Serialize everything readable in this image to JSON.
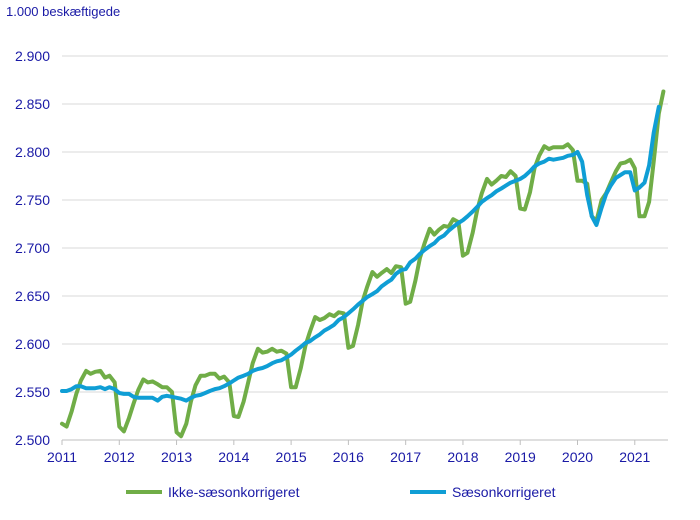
{
  "chart_data": {
    "type": "line",
    "title": "",
    "ylabel": "1.000 beskæftigede",
    "xlabel": "",
    "ylim": [
      2500,
      2900
    ],
    "xlim": [
      2011,
      2021.58
    ],
    "yticks": [
      2500,
      2550,
      2600,
      2650,
      2700,
      2750,
      2800,
      2850,
      2900
    ],
    "yticklabels": [
      "2.500",
      "2.550",
      "2.600",
      "2.650",
      "2.700",
      "2.750",
      "2.800",
      "2.850",
      "2.900"
    ],
    "xticks": [
      2011,
      2012,
      2013,
      2014,
      2015,
      2016,
      2017,
      2018,
      2019,
      2020,
      2021
    ],
    "xticklabels": [
      "2011",
      "2012",
      "2013",
      "2014",
      "2015",
      "2016",
      "2017",
      "2018",
      "2019",
      "2020",
      "2021"
    ],
    "grid": "horizontal",
    "legend_position": "bottom",
    "colors": {
      "Ikke-sæsonkorrigeret": "#70ad47",
      "Sæsonkorrigeret": "#0f9ed5",
      "text": "#1a1aa6",
      "grid": "#d9d9d9"
    },
    "series": [
      {
        "name": "Ikke-sæsonkorrigeret",
        "points": [
          [
            2011.0,
            2517
          ],
          [
            2011.08,
            2514
          ],
          [
            2011.17,
            2530
          ],
          [
            2011.25,
            2548
          ],
          [
            2011.33,
            2562
          ],
          [
            2011.42,
            2572
          ],
          [
            2011.5,
            2569
          ],
          [
            2011.58,
            2571
          ],
          [
            2011.67,
            2572
          ],
          [
            2011.75,
            2565
          ],
          [
            2011.83,
            2567
          ],
          [
            2011.92,
            2560
          ],
          [
            2012.0,
            2514
          ],
          [
            2012.08,
            2509
          ],
          [
            2012.17,
            2523
          ],
          [
            2012.25,
            2538
          ],
          [
            2012.33,
            2552
          ],
          [
            2012.42,
            2563
          ],
          [
            2012.5,
            2560
          ],
          [
            2012.58,
            2561
          ],
          [
            2012.67,
            2558
          ],
          [
            2012.75,
            2555
          ],
          [
            2012.83,
            2555
          ],
          [
            2012.92,
            2550
          ],
          [
            2013.0,
            2508
          ],
          [
            2013.08,
            2504
          ],
          [
            2013.17,
            2517
          ],
          [
            2013.25,
            2540
          ],
          [
            2013.33,
            2557
          ],
          [
            2013.42,
            2567
          ],
          [
            2013.5,
            2567
          ],
          [
            2013.58,
            2569
          ],
          [
            2013.67,
            2569
          ],
          [
            2013.75,
            2564
          ],
          [
            2013.83,
            2566
          ],
          [
            2013.92,
            2560
          ],
          [
            2014.0,
            2525
          ],
          [
            2014.08,
            2524
          ],
          [
            2014.17,
            2540
          ],
          [
            2014.25,
            2560
          ],
          [
            2014.33,
            2580
          ],
          [
            2014.42,
            2595
          ],
          [
            2014.5,
            2591
          ],
          [
            2014.58,
            2592
          ],
          [
            2014.67,
            2595
          ],
          [
            2014.75,
            2592
          ],
          [
            2014.83,
            2593
          ],
          [
            2014.92,
            2590
          ],
          [
            2015.0,
            2555
          ],
          [
            2015.08,
            2555
          ],
          [
            2015.17,
            2575
          ],
          [
            2015.25,
            2598
          ],
          [
            2015.33,
            2613
          ],
          [
            2015.42,
            2628
          ],
          [
            2015.5,
            2625
          ],
          [
            2015.58,
            2627
          ],
          [
            2015.67,
            2631
          ],
          [
            2015.75,
            2629
          ],
          [
            2015.83,
            2633
          ],
          [
            2015.92,
            2632
          ],
          [
            2016.0,
            2596
          ],
          [
            2016.08,
            2598
          ],
          [
            2016.17,
            2620
          ],
          [
            2016.25,
            2645
          ],
          [
            2016.33,
            2660
          ],
          [
            2016.42,
            2675
          ],
          [
            2016.5,
            2670
          ],
          [
            2016.58,
            2674
          ],
          [
            2016.67,
            2678
          ],
          [
            2016.75,
            2674
          ],
          [
            2016.83,
            2681
          ],
          [
            2016.92,
            2680
          ],
          [
            2017.0,
            2642
          ],
          [
            2017.08,
            2644
          ],
          [
            2017.17,
            2666
          ],
          [
            2017.25,
            2690
          ],
          [
            2017.33,
            2705
          ],
          [
            2017.42,
            2720
          ],
          [
            2017.5,
            2714
          ],
          [
            2017.58,
            2719
          ],
          [
            2017.67,
            2723
          ],
          [
            2017.75,
            2722
          ],
          [
            2017.83,
            2730
          ],
          [
            2017.92,
            2727
          ],
          [
            2018.0,
            2692
          ],
          [
            2018.08,
            2695
          ],
          [
            2018.17,
            2716
          ],
          [
            2018.25,
            2740
          ],
          [
            2018.33,
            2757
          ],
          [
            2018.42,
            2772
          ],
          [
            2018.5,
            2766
          ],
          [
            2018.58,
            2770
          ],
          [
            2018.67,
            2775
          ],
          [
            2018.75,
            2774
          ],
          [
            2018.83,
            2780
          ],
          [
            2018.92,
            2775
          ],
          [
            2019.0,
            2741
          ],
          [
            2019.08,
            2740
          ],
          [
            2019.17,
            2758
          ],
          [
            2019.25,
            2783
          ],
          [
            2019.33,
            2796
          ],
          [
            2019.42,
            2806
          ],
          [
            2019.5,
            2803
          ],
          [
            2019.58,
            2805
          ],
          [
            2019.67,
            2805
          ],
          [
            2019.75,
            2805
          ],
          [
            2019.83,
            2808
          ],
          [
            2019.92,
            2802
          ],
          [
            2020.0,
            2770
          ],
          [
            2020.08,
            2770
          ],
          [
            2020.17,
            2767
          ],
          [
            2020.25,
            2733
          ],
          [
            2020.33,
            2728
          ],
          [
            2020.42,
            2750
          ],
          [
            2020.5,
            2757
          ],
          [
            2020.58,
            2768
          ],
          [
            2020.67,
            2780
          ],
          [
            2020.75,
            2788
          ],
          [
            2020.83,
            2789
          ],
          [
            2020.92,
            2792
          ],
          [
            2021.0,
            2783
          ],
          [
            2021.08,
            2733
          ],
          [
            2021.17,
            2733
          ],
          [
            2021.25,
            2748
          ],
          [
            2021.33,
            2790
          ],
          [
            2021.42,
            2840
          ],
          [
            2021.5,
            2863
          ]
        ]
      },
      {
        "name": "Sæsonkorrigeret",
        "points": [
          [
            2011.0,
            2551
          ],
          [
            2011.08,
            2551
          ],
          [
            2011.17,
            2553
          ],
          [
            2011.25,
            2556
          ],
          [
            2011.33,
            2556
          ],
          [
            2011.42,
            2554
          ],
          [
            2011.5,
            2554
          ],
          [
            2011.58,
            2554
          ],
          [
            2011.67,
            2555
          ],
          [
            2011.75,
            2553
          ],
          [
            2011.83,
            2555
          ],
          [
            2011.92,
            2553
          ],
          [
            2012.0,
            2549
          ],
          [
            2012.08,
            2548
          ],
          [
            2012.17,
            2548
          ],
          [
            2012.25,
            2545
          ],
          [
            2012.33,
            2544
          ],
          [
            2012.42,
            2544
          ],
          [
            2012.5,
            2544
          ],
          [
            2012.58,
            2544
          ],
          [
            2012.67,
            2541
          ],
          [
            2012.75,
            2545
          ],
          [
            2012.83,
            2546
          ],
          [
            2012.92,
            2545
          ],
          [
            2013.0,
            2544
          ],
          [
            2013.08,
            2543
          ],
          [
            2013.17,
            2541
          ],
          [
            2013.25,
            2544
          ],
          [
            2013.33,
            2546
          ],
          [
            2013.42,
            2547
          ],
          [
            2013.5,
            2549
          ],
          [
            2013.58,
            2551
          ],
          [
            2013.67,
            2553
          ],
          [
            2013.75,
            2554
          ],
          [
            2013.83,
            2556
          ],
          [
            2013.92,
            2559
          ],
          [
            2014.0,
            2562
          ],
          [
            2014.08,
            2565
          ],
          [
            2014.17,
            2567
          ],
          [
            2014.25,
            2569
          ],
          [
            2014.33,
            2572
          ],
          [
            2014.42,
            2574
          ],
          [
            2014.5,
            2575
          ],
          [
            2014.58,
            2577
          ],
          [
            2014.67,
            2580
          ],
          [
            2014.75,
            2582
          ],
          [
            2014.83,
            2583
          ],
          [
            2014.92,
            2586
          ],
          [
            2015.0,
            2589
          ],
          [
            2015.08,
            2593
          ],
          [
            2015.17,
            2597
          ],
          [
            2015.25,
            2601
          ],
          [
            2015.33,
            2603
          ],
          [
            2015.42,
            2607
          ],
          [
            2015.5,
            2610
          ],
          [
            2015.58,
            2614
          ],
          [
            2015.67,
            2617
          ],
          [
            2015.75,
            2620
          ],
          [
            2015.83,
            2625
          ],
          [
            2015.92,
            2628
          ],
          [
            2016.0,
            2632
          ],
          [
            2016.08,
            2636
          ],
          [
            2016.17,
            2641
          ],
          [
            2016.25,
            2645
          ],
          [
            2016.33,
            2649
          ],
          [
            2016.42,
            2652
          ],
          [
            2016.5,
            2655
          ],
          [
            2016.58,
            2660
          ],
          [
            2016.67,
            2664
          ],
          [
            2016.75,
            2667
          ],
          [
            2016.83,
            2673
          ],
          [
            2016.92,
            2677
          ],
          [
            2017.0,
            2678
          ],
          [
            2017.08,
            2685
          ],
          [
            2017.17,
            2689
          ],
          [
            2017.25,
            2694
          ],
          [
            2017.33,
            2698
          ],
          [
            2017.42,
            2702
          ],
          [
            2017.5,
            2705
          ],
          [
            2017.58,
            2710
          ],
          [
            2017.67,
            2713
          ],
          [
            2017.75,
            2718
          ],
          [
            2017.83,
            2722
          ],
          [
            2017.92,
            2726
          ],
          [
            2018.0,
            2729
          ],
          [
            2018.08,
            2733
          ],
          [
            2018.17,
            2738
          ],
          [
            2018.25,
            2743
          ],
          [
            2018.33,
            2748
          ],
          [
            2018.42,
            2752
          ],
          [
            2018.5,
            2755
          ],
          [
            2018.58,
            2759
          ],
          [
            2018.67,
            2762
          ],
          [
            2018.75,
            2765
          ],
          [
            2018.83,
            2768
          ],
          [
            2018.92,
            2770
          ],
          [
            2019.0,
            2772
          ],
          [
            2019.08,
            2775
          ],
          [
            2019.17,
            2780
          ],
          [
            2019.25,
            2785
          ],
          [
            2019.33,
            2788
          ],
          [
            2019.42,
            2790
          ],
          [
            2019.5,
            2793
          ],
          [
            2019.58,
            2792
          ],
          [
            2019.67,
            2793
          ],
          [
            2019.75,
            2794
          ],
          [
            2019.83,
            2796
          ],
          [
            2019.92,
            2797
          ],
          [
            2020.0,
            2800
          ],
          [
            2020.08,
            2790
          ],
          [
            2020.17,
            2755
          ],
          [
            2020.25,
            2733
          ],
          [
            2020.33,
            2724
          ],
          [
            2020.42,
            2742
          ],
          [
            2020.5,
            2756
          ],
          [
            2020.58,
            2765
          ],
          [
            2020.67,
            2773
          ],
          [
            2020.75,
            2776
          ],
          [
            2020.83,
            2779
          ],
          [
            2020.92,
            2779
          ],
          [
            2021.0,
            2760
          ],
          [
            2021.08,
            2763
          ],
          [
            2021.17,
            2768
          ],
          [
            2021.25,
            2786
          ],
          [
            2021.33,
            2820
          ],
          [
            2021.42,
            2847
          ]
        ]
      }
    ]
  }
}
